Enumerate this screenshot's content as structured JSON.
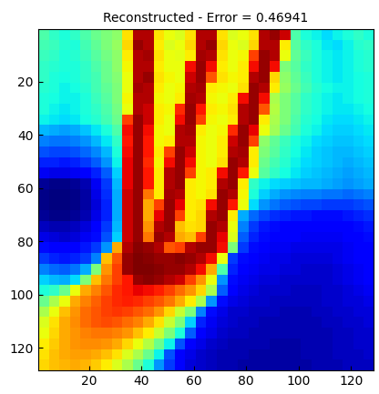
{
  "chart_data": {
    "type": "heatmap",
    "title": "Reconstructed - Error = 0.46941",
    "xlim": [
      0.5,
      128.5
    ],
    "ylim": [
      128.5,
      0.5
    ],
    "xticks": [
      20,
      40,
      60,
      80,
      100,
      120
    ],
    "yticks": [
      20,
      40,
      60,
      80,
      100,
      120
    ],
    "cells": [
      [
        0.45,
        0.42,
        0.4,
        0.42,
        0.45,
        0.48,
        0.5,
        0.52,
        0.65,
        0.9,
        0.9,
        0.65,
        0.62,
        0.6,
        0.65,
        0.9,
        0.9,
        0.65,
        0.6,
        0.62,
        0.65,
        0.9,
        0.92,
        0.88,
        0.45,
        0.4,
        0.38,
        0.36,
        0.38,
        0.4,
        0.42,
        0.4
      ],
      [
        0.44,
        0.43,
        0.41,
        0.4,
        0.44,
        0.47,
        0.5,
        0.53,
        0.66,
        0.92,
        0.9,
        0.64,
        0.6,
        0.62,
        0.66,
        0.9,
        0.92,
        0.66,
        0.62,
        0.6,
        0.66,
        0.9,
        0.9,
        0.64,
        0.46,
        0.42,
        0.4,
        0.37,
        0.36,
        0.38,
        0.41,
        0.42
      ],
      [
        0.43,
        0.42,
        0.4,
        0.41,
        0.43,
        0.46,
        0.49,
        0.52,
        0.64,
        0.9,
        0.91,
        0.65,
        0.62,
        0.61,
        0.64,
        0.91,
        0.9,
        0.65,
        0.62,
        0.63,
        0.8,
        0.92,
        0.9,
        0.62,
        0.47,
        0.43,
        0.4,
        0.38,
        0.37,
        0.38,
        0.4,
        0.41
      ],
      [
        0.42,
        0.41,
        0.4,
        0.4,
        0.42,
        0.45,
        0.48,
        0.52,
        0.63,
        0.9,
        0.9,
        0.64,
        0.62,
        0.62,
        0.85,
        0.92,
        0.85,
        0.64,
        0.62,
        0.64,
        0.85,
        0.92,
        0.85,
        0.5,
        0.46,
        0.42,
        0.4,
        0.38,
        0.37,
        0.38,
        0.4,
        0.41
      ],
      [
        0.42,
        0.4,
        0.39,
        0.4,
        0.42,
        0.44,
        0.48,
        0.51,
        0.62,
        0.9,
        0.92,
        0.65,
        0.63,
        0.62,
        0.88,
        0.92,
        0.78,
        0.65,
        0.63,
        0.64,
        0.9,
        0.92,
        0.66,
        0.52,
        0.47,
        0.43,
        0.4,
        0.38,
        0.37,
        0.38,
        0.39,
        0.4
      ],
      [
        0.41,
        0.4,
        0.38,
        0.39,
        0.41,
        0.44,
        0.47,
        0.5,
        0.62,
        0.91,
        0.9,
        0.64,
        0.62,
        0.63,
        0.9,
        0.91,
        0.64,
        0.63,
        0.62,
        0.65,
        0.92,
        0.9,
        0.64,
        0.53,
        0.48,
        0.44,
        0.41,
        0.39,
        0.38,
        0.38,
        0.39,
        0.4
      ],
      [
        0.4,
        0.39,
        0.38,
        0.38,
        0.4,
        0.43,
        0.46,
        0.5,
        0.63,
        0.9,
        0.9,
        0.63,
        0.62,
        0.64,
        0.91,
        0.9,
        0.63,
        0.62,
        0.64,
        0.85,
        0.92,
        0.85,
        0.55,
        0.5,
        0.46,
        0.42,
        0.4,
        0.38,
        0.37,
        0.38,
        0.39,
        0.4
      ],
      [
        0.4,
        0.38,
        0.37,
        0.38,
        0.4,
        0.42,
        0.45,
        0.49,
        0.62,
        0.9,
        0.88,
        0.64,
        0.63,
        0.82,
        0.92,
        0.84,
        0.64,
        0.63,
        0.65,
        0.9,
        0.92,
        0.78,
        0.56,
        0.5,
        0.46,
        0.42,
        0.4,
        0.38,
        0.37,
        0.37,
        0.38,
        0.39
      ],
      [
        0.38,
        0.37,
        0.36,
        0.37,
        0.39,
        0.41,
        0.44,
        0.48,
        0.8,
        0.92,
        0.88,
        0.64,
        0.62,
        0.85,
        0.92,
        0.8,
        0.63,
        0.62,
        0.64,
        0.9,
        0.92,
        0.64,
        0.55,
        0.5,
        0.45,
        0.41,
        0.39,
        0.37,
        0.36,
        0.36,
        0.37,
        0.38
      ],
      [
        0.33,
        0.32,
        0.31,
        0.32,
        0.34,
        0.37,
        0.4,
        0.45,
        0.85,
        0.92,
        0.85,
        0.63,
        0.62,
        0.9,
        0.91,
        0.64,
        0.62,
        0.63,
        0.82,
        0.92,
        0.86,
        0.62,
        0.54,
        0.48,
        0.44,
        0.4,
        0.38,
        0.36,
        0.35,
        0.35,
        0.36,
        0.37
      ],
      [
        0.28,
        0.27,
        0.27,
        0.28,
        0.3,
        0.33,
        0.37,
        0.42,
        0.84,
        0.92,
        0.84,
        0.63,
        0.64,
        0.9,
        0.9,
        0.63,
        0.62,
        0.64,
        0.88,
        0.92,
        0.8,
        0.52,
        0.47,
        0.43,
        0.4,
        0.38,
        0.36,
        0.35,
        0.34,
        0.34,
        0.35,
        0.36
      ],
      [
        0.24,
        0.23,
        0.23,
        0.24,
        0.26,
        0.29,
        0.33,
        0.4,
        0.85,
        0.92,
        0.84,
        0.64,
        0.8,
        0.92,
        0.88,
        0.63,
        0.62,
        0.64,
        0.9,
        0.91,
        0.64,
        0.5,
        0.46,
        0.42,
        0.39,
        0.37,
        0.35,
        0.34,
        0.33,
        0.33,
        0.34,
        0.35
      ],
      [
        0.2,
        0.2,
        0.19,
        0.2,
        0.22,
        0.25,
        0.3,
        0.38,
        0.86,
        0.92,
        0.82,
        0.63,
        0.85,
        0.92,
        0.85,
        0.63,
        0.62,
        0.65,
        0.92,
        0.9,
        0.64,
        0.48,
        0.44,
        0.41,
        0.38,
        0.36,
        0.35,
        0.34,
        0.33,
        0.32,
        0.33,
        0.34
      ],
      [
        0.15,
        0.14,
        0.14,
        0.15,
        0.17,
        0.2,
        0.25,
        0.35,
        0.86,
        0.92,
        0.84,
        0.64,
        0.9,
        0.92,
        0.8,
        0.63,
        0.64,
        0.85,
        0.92,
        0.84,
        0.62,
        0.46,
        0.42,
        0.39,
        0.37,
        0.35,
        0.34,
        0.33,
        0.32,
        0.31,
        0.32,
        0.33
      ],
      [
        0.08,
        0.07,
        0.07,
        0.08,
        0.1,
        0.15,
        0.22,
        0.33,
        0.86,
        0.92,
        0.84,
        0.64,
        0.9,
        0.92,
        0.64,
        0.63,
        0.64,
        0.9,
        0.92,
        0.64,
        0.42,
        0.38,
        0.36,
        0.35,
        0.34,
        0.33,
        0.33,
        0.32,
        0.31,
        0.3,
        0.31,
        0.32
      ],
      [
        0.07,
        0.06,
        0.06,
        0.07,
        0.09,
        0.14,
        0.21,
        0.32,
        0.88,
        0.92,
        0.75,
        0.64,
        0.91,
        0.9,
        0.64,
        0.63,
        0.65,
        0.92,
        0.9,
        0.63,
        0.4,
        0.35,
        0.32,
        0.3,
        0.29,
        0.28,
        0.28,
        0.27,
        0.27,
        0.26,
        0.27,
        0.28
      ],
      [
        0.07,
        0.06,
        0.06,
        0.07,
        0.09,
        0.13,
        0.2,
        0.32,
        0.88,
        0.92,
        0.7,
        0.8,
        0.92,
        0.86,
        0.64,
        0.65,
        0.85,
        0.92,
        0.84,
        0.62,
        0.36,
        0.3,
        0.27,
        0.25,
        0.24,
        0.23,
        0.23,
        0.22,
        0.22,
        0.22,
        0.23,
        0.24
      ],
      [
        0.08,
        0.07,
        0.07,
        0.08,
        0.1,
        0.14,
        0.2,
        0.32,
        0.88,
        0.92,
        0.7,
        0.86,
        0.92,
        0.8,
        0.64,
        0.66,
        0.9,
        0.92,
        0.64,
        0.32,
        0.26,
        0.23,
        0.21,
        0.2,
        0.19,
        0.19,
        0.18,
        0.18,
        0.18,
        0.19,
        0.2,
        0.21
      ],
      [
        0.11,
        0.1,
        0.1,
        0.11,
        0.13,
        0.16,
        0.22,
        0.33,
        0.88,
        0.92,
        0.72,
        0.9,
        0.92,
        0.68,
        0.65,
        0.66,
        0.92,
        0.9,
        0.62,
        0.28,
        0.22,
        0.19,
        0.18,
        0.17,
        0.17,
        0.16,
        0.16,
        0.16,
        0.16,
        0.17,
        0.18,
        0.19
      ],
      [
        0.14,
        0.13,
        0.12,
        0.13,
        0.15,
        0.18,
        0.24,
        0.35,
        0.88,
        0.92,
        0.75,
        0.92,
        0.9,
        0.7,
        0.68,
        0.8,
        0.92,
        0.86,
        0.6,
        0.25,
        0.2,
        0.18,
        0.17,
        0.16,
        0.16,
        0.15,
        0.15,
        0.15,
        0.15,
        0.16,
        0.17,
        0.18
      ],
      [
        0.18,
        0.17,
        0.16,
        0.17,
        0.19,
        0.22,
        0.3,
        0.7,
        0.9,
        0.93,
        0.92,
        0.9,
        0.78,
        0.8,
        0.9,
        0.92,
        0.92,
        0.85,
        0.5,
        0.22,
        0.18,
        0.16,
        0.15,
        0.15,
        0.14,
        0.14,
        0.14,
        0.14,
        0.14,
        0.15,
        0.16,
        0.17
      ],
      [
        0.22,
        0.2,
        0.19,
        0.2,
        0.22,
        0.28,
        0.68,
        0.78,
        0.92,
        0.94,
        0.93,
        0.92,
        0.92,
        0.93,
        0.92,
        0.9,
        0.85,
        0.62,
        0.22,
        0.18,
        0.16,
        0.15,
        0.14,
        0.14,
        0.13,
        0.13,
        0.13,
        0.13,
        0.14,
        0.15,
        0.16,
        0.17
      ],
      [
        0.28,
        0.26,
        0.25,
        0.27,
        0.32,
        0.5,
        0.72,
        0.8,
        0.92,
        0.94,
        0.94,
        0.93,
        0.92,
        0.92,
        0.9,
        0.85,
        0.7,
        0.45,
        0.2,
        0.17,
        0.15,
        0.14,
        0.14,
        0.13,
        0.13,
        0.12,
        0.12,
        0.12,
        0.13,
        0.14,
        0.15,
        0.16
      ],
      [
        0.35,
        0.33,
        0.32,
        0.36,
        0.5,
        0.68,
        0.75,
        0.8,
        0.84,
        0.92,
        0.93,
        0.92,
        0.9,
        0.88,
        0.8,
        0.72,
        0.62,
        0.3,
        0.18,
        0.15,
        0.14,
        0.13,
        0.13,
        0.12,
        0.12,
        0.12,
        0.12,
        0.12,
        0.13,
        0.14,
        0.15,
        0.16
      ],
      [
        0.4,
        0.42,
        0.48,
        0.62,
        0.7,
        0.74,
        0.78,
        0.82,
        0.84,
        0.86,
        0.85,
        0.83,
        0.8,
        0.76,
        0.72,
        0.66,
        0.55,
        0.25,
        0.17,
        0.14,
        0.13,
        0.12,
        0.12,
        0.12,
        0.11,
        0.11,
        0.11,
        0.12,
        0.12,
        0.13,
        0.14,
        0.15
      ],
      [
        0.48,
        0.55,
        0.62,
        0.7,
        0.74,
        0.77,
        0.8,
        0.82,
        0.83,
        0.82,
        0.8,
        0.78,
        0.75,
        0.7,
        0.64,
        0.55,
        0.3,
        0.18,
        0.14,
        0.13,
        0.12,
        0.12,
        0.11,
        0.11,
        0.11,
        0.11,
        0.11,
        0.12,
        0.12,
        0.13,
        0.13,
        0.14
      ],
      [
        0.55,
        0.62,
        0.68,
        0.72,
        0.76,
        0.78,
        0.8,
        0.81,
        0.8,
        0.78,
        0.76,
        0.72,
        0.66,
        0.58,
        0.5,
        0.28,
        0.18,
        0.14,
        0.12,
        0.12,
        0.11,
        0.11,
        0.11,
        0.1,
        0.1,
        0.1,
        0.11,
        0.11,
        0.12,
        0.12,
        0.13,
        0.13
      ],
      [
        0.6,
        0.65,
        0.7,
        0.73,
        0.76,
        0.78,
        0.79,
        0.78,
        0.76,
        0.74,
        0.7,
        0.65,
        0.58,
        0.5,
        0.35,
        0.2,
        0.15,
        0.13,
        0.12,
        0.11,
        0.11,
        0.1,
        0.1,
        0.1,
        0.1,
        0.1,
        0.1,
        0.11,
        0.11,
        0.12,
        0.12,
        0.13
      ],
      [
        0.62,
        0.66,
        0.7,
        0.72,
        0.74,
        0.75,
        0.75,
        0.74,
        0.72,
        0.68,
        0.64,
        0.58,
        0.5,
        0.4,
        0.25,
        0.17,
        0.14,
        0.12,
        0.11,
        0.11,
        0.1,
        0.1,
        0.1,
        0.1,
        0.1,
        0.1,
        0.1,
        0.1,
        0.11,
        0.11,
        0.12,
        0.12
      ],
      [
        0.64,
        0.67,
        0.7,
        0.72,
        0.73,
        0.73,
        0.72,
        0.7,
        0.66,
        0.62,
        0.56,
        0.48,
        0.38,
        0.24,
        0.17,
        0.14,
        0.12,
        0.11,
        0.1,
        0.1,
        0.1,
        0.1,
        0.09,
        0.09,
        0.09,
        0.1,
        0.1,
        0.1,
        0.11,
        0.11,
        0.12,
        0.12
      ],
      [
        0.65,
        0.68,
        0.7,
        0.71,
        0.71,
        0.7,
        0.68,
        0.65,
        0.6,
        0.55,
        0.48,
        0.38,
        0.24,
        0.17,
        0.14,
        0.12,
        0.11,
        0.1,
        0.1,
        0.1,
        0.09,
        0.09,
        0.09,
        0.09,
        0.09,
        0.1,
        0.1,
        0.1,
        0.11,
        0.11,
        0.11,
        0.12
      ],
      [
        0.66,
        0.68,
        0.69,
        0.7,
        0.69,
        0.67,
        0.64,
        0.6,
        0.55,
        0.48,
        0.4,
        0.3,
        0.22,
        0.16,
        0.13,
        0.12,
        0.11,
        0.1,
        0.1,
        0.09,
        0.09,
        0.09,
        0.09,
        0.09,
        0.09,
        0.09,
        0.1,
        0.1,
        0.1,
        0.11,
        0.11,
        0.11
      ]
    ]
  }
}
